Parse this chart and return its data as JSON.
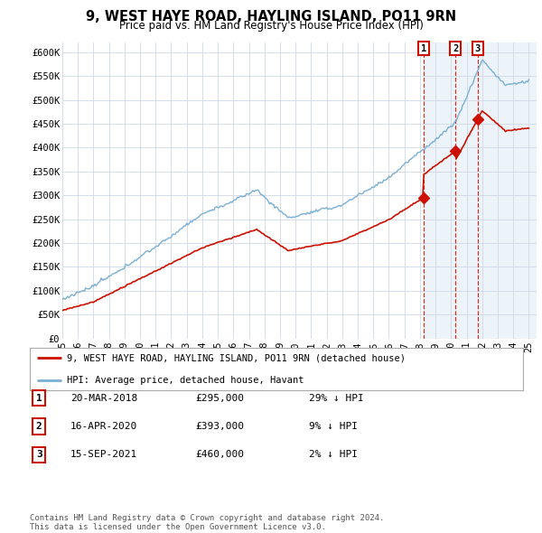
{
  "title": "9, WEST HAYE ROAD, HAYLING ISLAND, PO11 9RN",
  "subtitle": "Price paid vs. HM Land Registry's House Price Index (HPI)",
  "background_color": "#ffffff",
  "grid_color": "#d0d8e8",
  "hpi_color": "#7bafd4",
  "price_color": "#cc1100",
  "highlight_bg": "#e8f0f8",
  "ylim": [
    0,
    620000
  ],
  "yticks": [
    0,
    50000,
    100000,
    150000,
    200000,
    250000,
    300000,
    350000,
    400000,
    450000,
    500000,
    550000,
    600000
  ],
  "ytick_labels": [
    "£0",
    "£50K",
    "£100K",
    "£150K",
    "£200K",
    "£250K",
    "£300K",
    "£350K",
    "£400K",
    "£450K",
    "£500K",
    "£550K",
    "£600K"
  ],
  "xlim_start": 1995.0,
  "xlim_end": 2025.5,
  "xtick_years": [
    1995,
    1996,
    1997,
    1998,
    1999,
    2000,
    2001,
    2002,
    2003,
    2004,
    2005,
    2006,
    2007,
    2008,
    2009,
    2010,
    2011,
    2012,
    2013,
    2014,
    2015,
    2016,
    2017,
    2018,
    2019,
    2020,
    2021,
    2022,
    2023,
    2024,
    2025
  ],
  "trans_dates": [
    2018.22,
    2020.29,
    2021.71
  ],
  "trans_prices": [
    295000,
    393000,
    460000
  ],
  "trans_labels": [
    "1",
    "2",
    "3"
  ],
  "legend_property_label": "9, WEST HAYE ROAD, HAYLING ISLAND, PO11 9RN (detached house)",
  "legend_hpi_label": "HPI: Average price, detached house, Havant",
  "transaction_rows": [
    {
      "num": "1",
      "date": "20-MAR-2018",
      "price": "£295,000",
      "hpi": "29% ↓ HPI"
    },
    {
      "num": "2",
      "date": "16-APR-2020",
      "price": "£393,000",
      "hpi": "9% ↓ HPI"
    },
    {
      "num": "3",
      "date": "15-SEP-2021",
      "price": "£460,000",
      "hpi": "2% ↓ HPI"
    }
  ],
  "footer": "Contains HM Land Registry data © Crown copyright and database right 2024.\nThis data is licensed under the Open Government Licence v3.0."
}
